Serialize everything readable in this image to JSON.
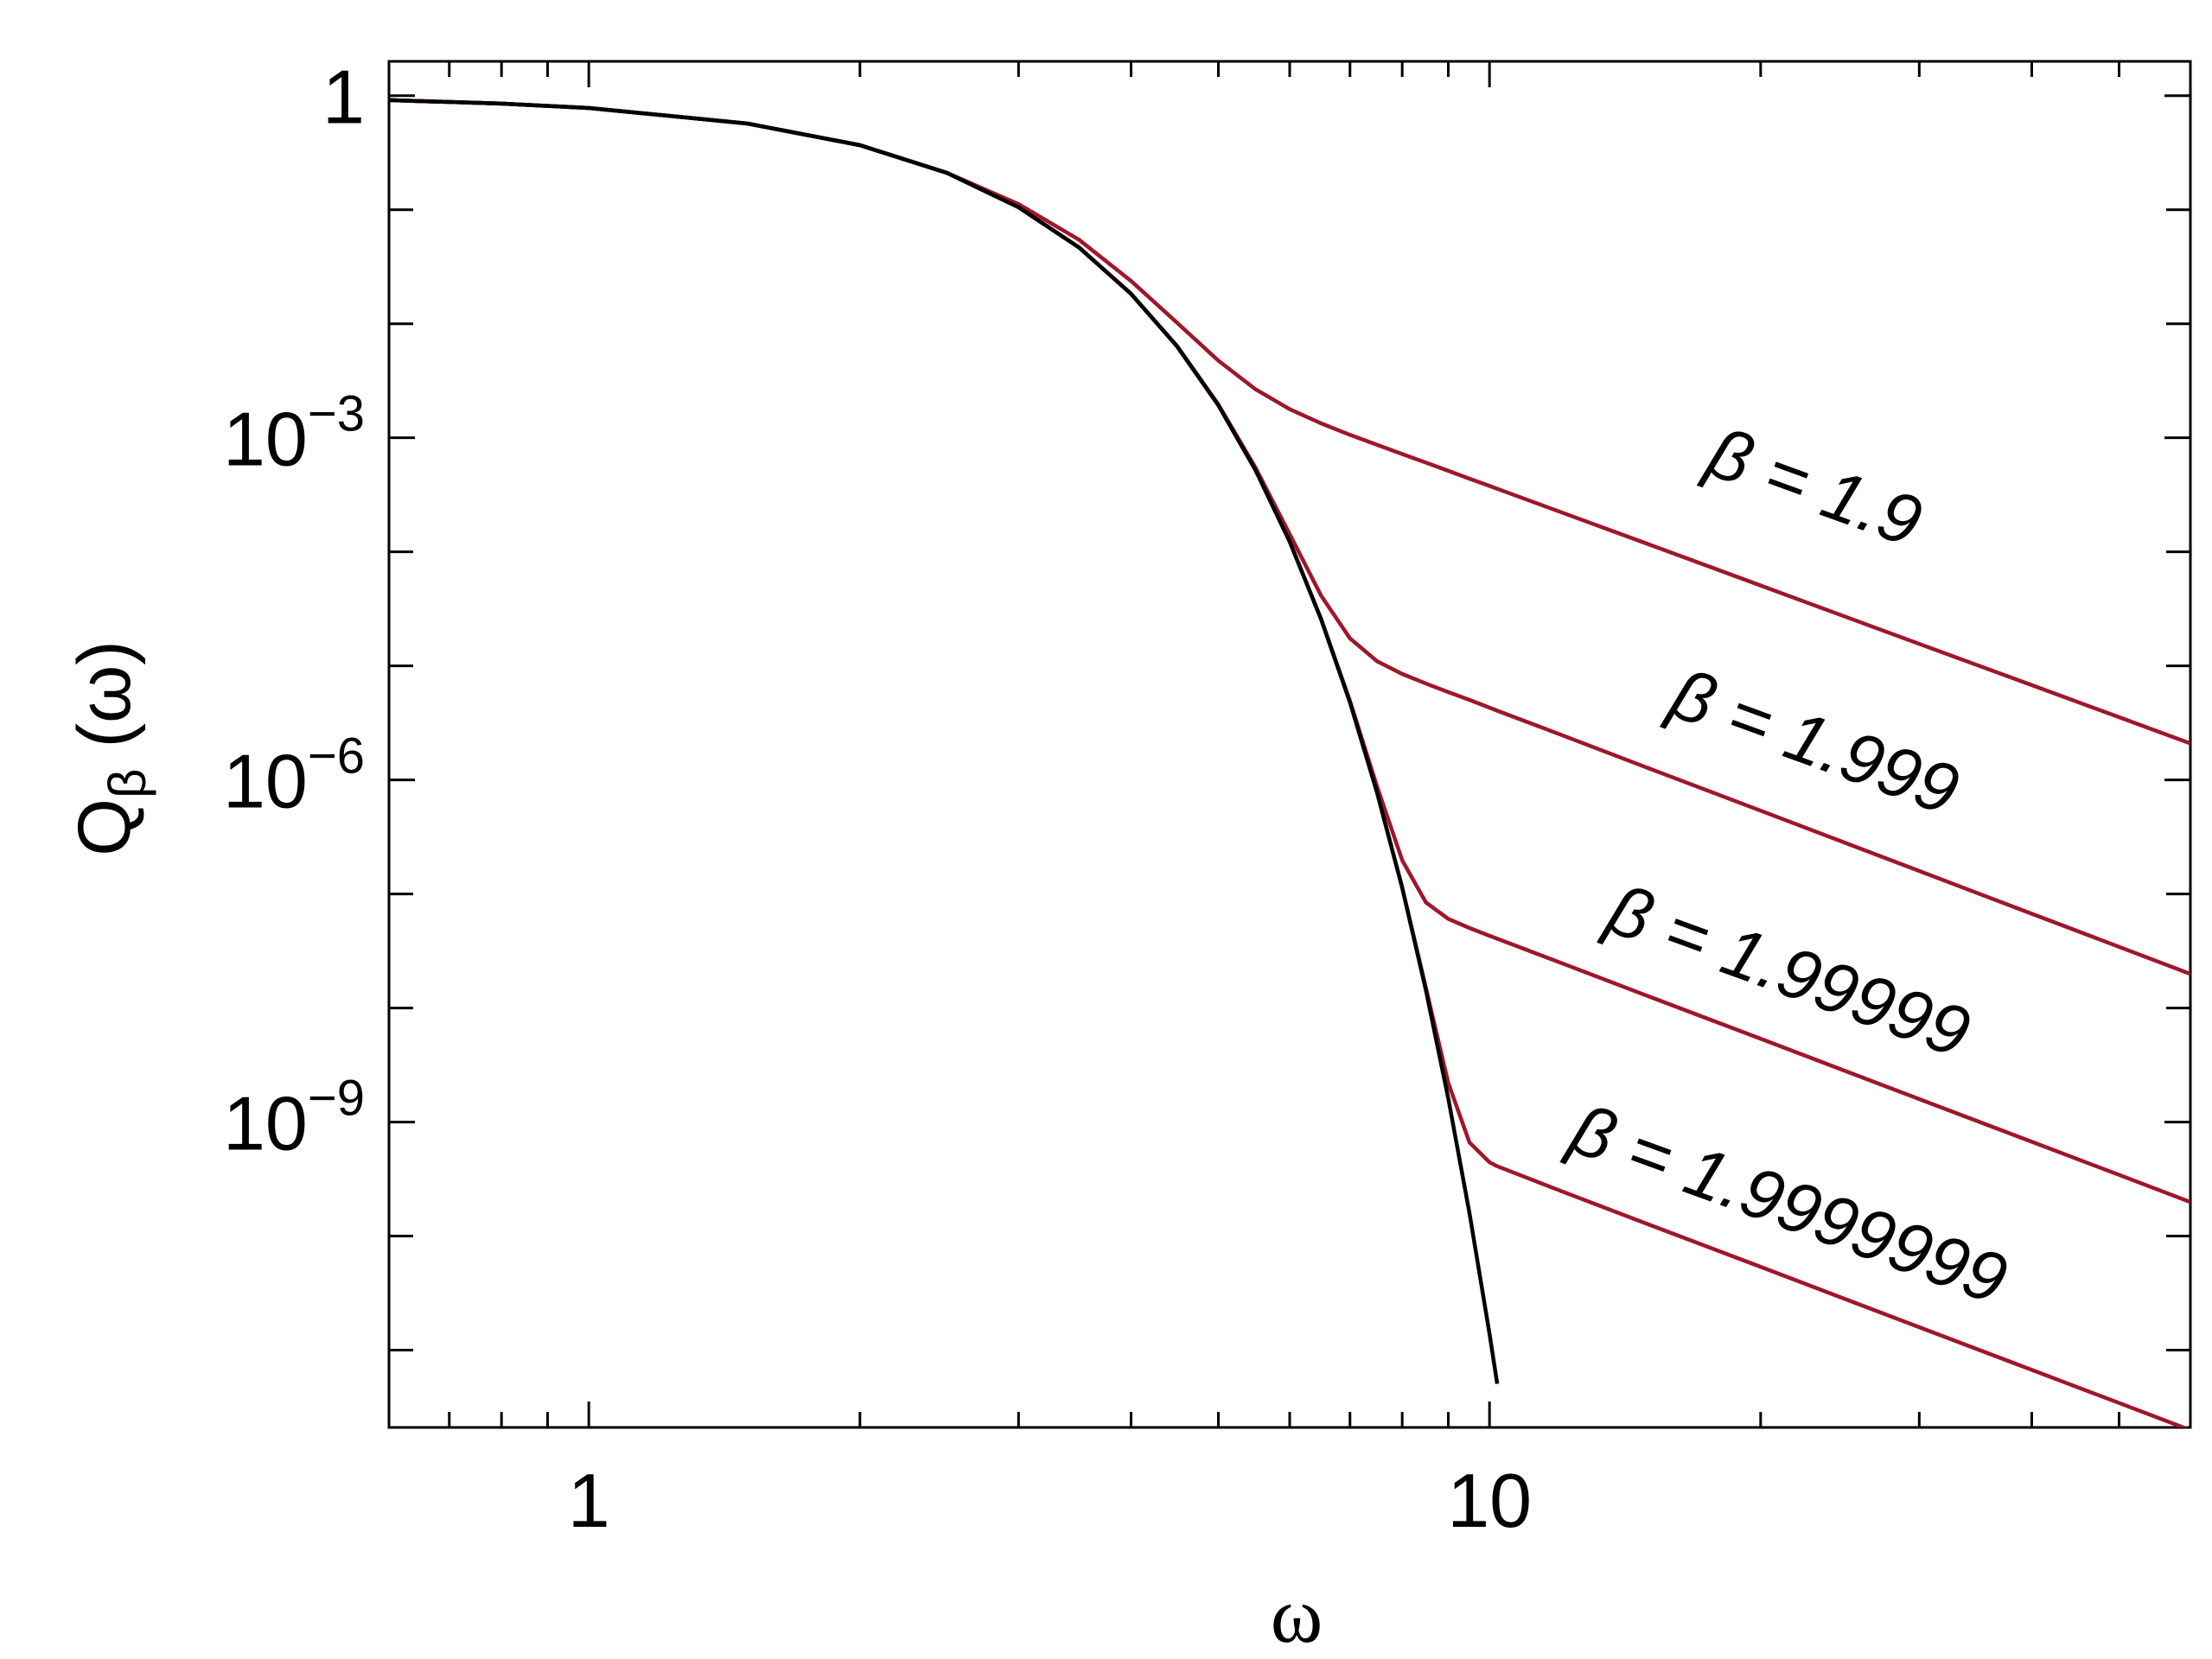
{
  "chart_data": {
    "type": "line",
    "x_label": "ω",
    "y_label": "Qβ (ω)",
    "xlog": true,
    "ylog": true,
    "xlim": [
      0.6,
      60
    ],
    "ylim": [
      2.1e-12,
      2
    ],
    "xticks": [
      1,
      10
    ],
    "xticks_minor": [
      0.7,
      0.8,
      0.9,
      2,
      3,
      4,
      5,
      6,
      7,
      8,
      9,
      20,
      30,
      40,
      50
    ],
    "yticks": [
      1,
      {
        "value": 0.001,
        "label": "10−3"
      },
      {
        "value": 1e-06,
        "label": "10−6"
      },
      {
        "value": 1e-09,
        "label": "10−9"
      }
    ],
    "yticks_minor": [
      0.1,
      0.01,
      0.0001,
      1e-05,
      1e-07,
      1e-08,
      1e-10,
      1e-11
    ],
    "x": [
      0.6,
      0.8,
      1,
      1.5,
      2,
      2.5,
      3,
      3.5,
      4,
      4.5,
      5,
      5.5,
      6,
      6.5,
      7,
      7.5,
      8,
      8.5,
      9,
      9.5,
      10,
      10.2,
      12,
      15,
      20,
      25,
      30,
      40,
      50,
      60
    ],
    "series": [
      {
        "name": "β = 1.9",
        "color": "#a0162b",
        "values": [
          0.914,
          0.852,
          0.779,
          0.57,
          0.368,
          0.21,
          0.112,
          0.0547,
          0.0237,
          0.0102,
          0.00475,
          0.00266,
          0.00178,
          0.00134,
          0.00106,
          0.00087,
          0.00072,
          0.000606,
          0.000513,
          0.000438,
          0.000378,
          0.000357,
          0.000223,
          0.000117,
          5.07e-05,
          2.65e-05,
          1.56e-05,
          6.78e-06,
          3.55e-06,
          2.09e-06
        ]
      },
      {
        "name": "β = 1.999",
        "color": "#a0162b",
        "values": [
          0.914,
          0.852,
          0.779,
          0.57,
          0.368,
          0.21,
          0.105,
          0.0468,
          0.0183,
          0.00638,
          0.00196,
          0.000545,
          0.000143,
          4.15e-05,
          1.74e-05,
          1.1e-05,
          8.5e-06,
          7e-06,
          5.89e-06,
          5.03e-06,
          4.3e-06,
          4.05e-06,
          2.49e-06,
          1.27e-06,
          5.38e-07,
          2.75e-07,
          1.59e-07,
          6.71e-08,
          3.44e-08,
          1.99e-08
        ]
      },
      {
        "name": "β = 1.99999",
        "color": "#a0162b",
        "values": [
          0.914,
          0.852,
          0.779,
          0.57,
          0.368,
          0.21,
          0.105,
          0.0468,
          0.0183,
          0.00633,
          0.00193,
          0.000519,
          0.000123,
          2.6e-05,
          4.91e-06,
          8.8e-07,
          1.97e-07,
          8.43e-08,
          6.05e-08,
          5.03e-08,
          4.3e-08,
          4.05e-08,
          2.49e-08,
          1.27e-08,
          5.38e-09,
          2.75e-09,
          1.59e-09,
          6.71e-10,
          3.44e-10,
          1.99e-10
        ]
      },
      {
        "name": "β = 1.9999999",
        "color": "#a0162b",
        "values": [
          0.914,
          0.852,
          0.779,
          0.57,
          0.368,
          0.21,
          0.105,
          0.0468,
          0.0183,
          0.00633,
          0.00193,
          0.000519,
          0.000123,
          2.58e-05,
          4.78e-06,
          7.8e-07,
          1.14e-07,
          1.5e-08,
          2.2e-09,
          6.62e-10,
          4.44e-10,
          4.1e-10,
          2.49e-10,
          1.27e-10,
          5.38e-11,
          2.75e-11,
          1.59e-11,
          6.71e-12,
          3.44e-12,
          1.99e-12
        ]
      },
      {
        "color": "#000000",
        "values": [
          0.914,
          0.852,
          0.779,
          0.57,
          0.368,
          0.21,
          0.105,
          0.0468,
          0.0183,
          0.00633,
          0.00193,
          0.000519,
          0.000123,
          2.58e-05,
          4.78e-06,
          7.8e-07,
          1.13e-07,
          1.43e-08,
          1.61e-09,
          1.59e-10,
          1.39e-11,
          5.07e-12,
          null,
          null,
          null,
          null,
          null,
          null,
          null,
          null
        ]
      }
    ]
  }
}
